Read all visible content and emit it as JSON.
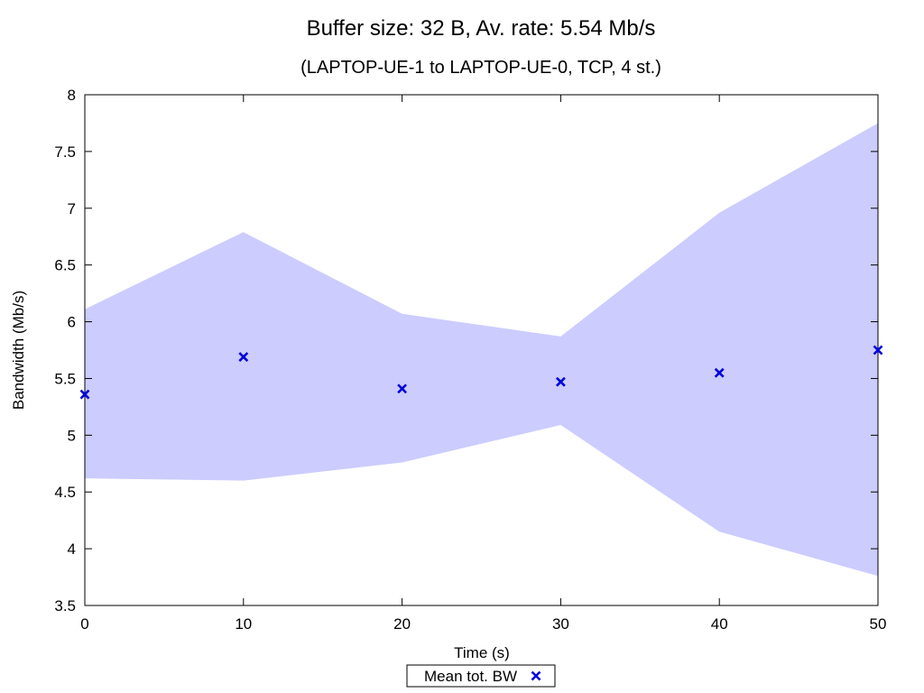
{
  "chart_data": {
    "type": "area",
    "title": "Buffer size: 32 B, Av. rate: 5.54 Mb/s",
    "subtitle": "(LAPTOP-UE-1 to LAPTOP-UE-0, TCP, 4 st.)",
    "xlabel": "Time (s)",
    "ylabel": "Bandwidth (Mb/s)",
    "xlim": [
      0,
      50
    ],
    "ylim": [
      3.5,
      8
    ],
    "x_ticks": [
      0,
      10,
      20,
      30,
      40,
      50
    ],
    "x_tick_labels": [
      "0",
      "10",
      "20",
      "30",
      "40",
      "50"
    ],
    "y_ticks": [
      3.5,
      4,
      4.5,
      5,
      5.5,
      6,
      6.5,
      7,
      7.5,
      8
    ],
    "y_tick_labels": [
      "3.5",
      "4",
      "4.5",
      "5",
      "5.5",
      "6",
      "6.5",
      "7",
      "7.5",
      "8"
    ],
    "grid": false,
    "legend_position": "bottom-center",
    "band": {
      "x": [
        0,
        10,
        20,
        30,
        40,
        50
      ],
      "upper": [
        6.11,
        6.79,
        6.07,
        5.87,
        6.96,
        7.75
      ],
      "lower": [
        4.62,
        4.6,
        4.76,
        5.09,
        4.15,
        3.76
      ],
      "color": "#ccccff"
    },
    "series": [
      {
        "name": "Mean tot. BW",
        "marker": "x",
        "color": "#0000dd",
        "x": [
          0,
          10,
          20,
          30,
          40,
          50
        ],
        "values": [
          5.36,
          5.69,
          5.41,
          5.47,
          5.55,
          5.75
        ]
      }
    ]
  }
}
